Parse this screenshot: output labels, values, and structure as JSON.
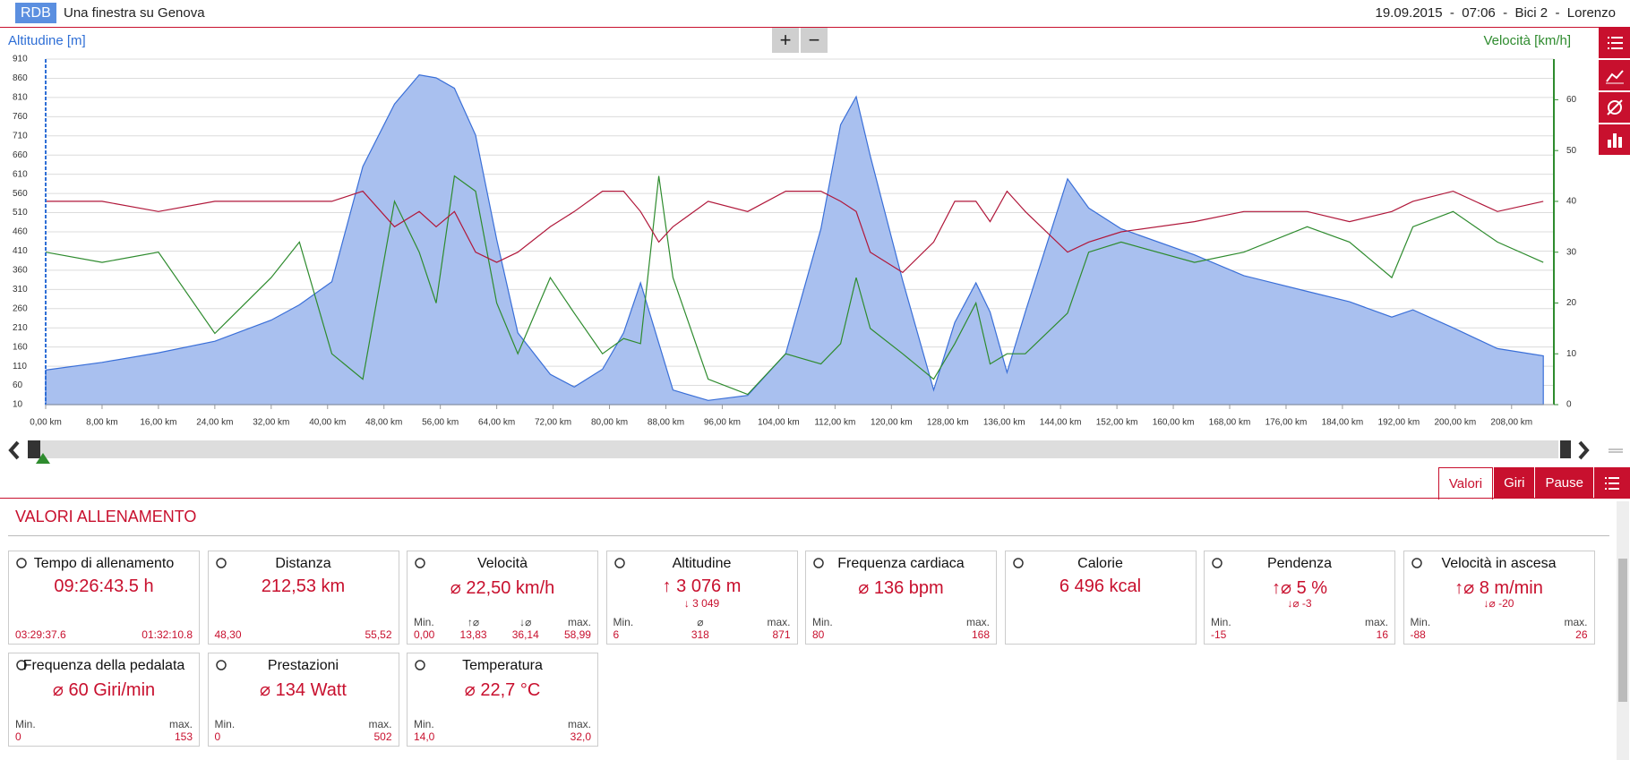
{
  "header": {
    "logo": "RDB",
    "title": "Una finestra su Genova",
    "info": "19.09.2015  -  07:06  -  Bici 2  -  Lorenzo"
  },
  "zoom": [
    "+",
    "−"
  ],
  "chart_data": {
    "type": "line",
    "ylabel": "Altitudine [m]",
    "y2label": "Velocità [km/h]",
    "x": [
      0,
      8,
      16,
      24,
      32,
      36,
      40.6,
      45,
      49.5,
      53,
      55.4,
      58,
      61,
      64,
      67,
      71.6,
      75,
      79,
      82,
      84.4,
      87,
      89,
      94,
      99.6,
      105,
      110,
      112.8,
      115,
      117,
      121.6,
      126,
      129,
      132,
      134,
      136.4,
      139,
      145,
      148,
      152.6,
      163,
      170,
      179,
      185,
      191,
      194,
      199.7,
      206,
      212.5
    ],
    "xlim": [
      0,
      214
    ],
    "ylim": [
      10,
      910
    ],
    "y2lim": [
      0,
      68
    ],
    "grid": true,
    "yticks": [
      10,
      60,
      110,
      160,
      210,
      260,
      310,
      360,
      410,
      460,
      510,
      560,
      610,
      660,
      710,
      760,
      810,
      860,
      910
    ],
    "y2ticks": [
      0,
      10,
      20,
      30,
      40,
      50,
      60
    ],
    "xticks": [
      {
        "value": 0,
        "label": "0,00 km"
      },
      {
        "value": 8,
        "label": "8,00 km"
      },
      {
        "value": 16,
        "label": "16,00 km"
      },
      {
        "value": 24,
        "label": "24,00 km"
      },
      {
        "value": 32,
        "label": "32,00 km"
      },
      {
        "value": 40,
        "label": "40,00 km"
      },
      {
        "value": 48,
        "label": "48,00 km"
      },
      {
        "value": 56,
        "label": "56,00 km"
      },
      {
        "value": 64,
        "label": "64,00 km"
      },
      {
        "value": 72,
        "label": "72,00 km"
      },
      {
        "value": 80,
        "label": "80,00 km"
      },
      {
        "value": 88,
        "label": "88,00 km"
      },
      {
        "value": 96,
        "label": "96,00 km"
      },
      {
        "value": 104,
        "label": "104,00 km"
      },
      {
        "value": 112,
        "label": "112,00 km"
      },
      {
        "value": 120,
        "label": "120,00 km"
      },
      {
        "value": 128,
        "label": "128,00 km"
      },
      {
        "value": 136,
        "label": "136,00 km"
      },
      {
        "value": 144,
        "label": "144,00 km"
      },
      {
        "value": 152,
        "label": "152,00 km"
      },
      {
        "value": 160,
        "label": "160,00 km"
      },
      {
        "value": 168,
        "label": "168,00 km"
      },
      {
        "value": 176,
        "label": "176,00 km"
      },
      {
        "value": 184,
        "label": "184,00 km"
      },
      {
        "value": 192,
        "label": "192,00 km"
      },
      {
        "value": 200,
        "label": "200,00 km"
      },
      {
        "value": 208,
        "label": "208,00 km"
      }
    ],
    "series": [
      {
        "color": "#3a6fd8",
        "fill": "#a9c0ef",
        "values": [
          100,
          120,
          145,
          175,
          230,
          270,
          330,
          630,
          793,
          869,
          861,
          834,
          712,
          440,
          197,
          89,
          56,
          102,
          197,
          327,
          170,
          48,
          21,
          34,
          143,
          468,
          739,
          812,
          658,
          333,
          48,
          224,
          327,
          251,
          94,
          251,
          598,
          522,
          468,
          400,
          346,
          305,
          278,
          238,
          257,
          210,
          156,
          137
        ]
      },
      {
        "color": "#2e8b2e",
        "axis": "y2",
        "values": [
          30,
          28,
          30,
          14,
          25,
          32,
          10,
          5,
          40,
          30,
          20,
          45,
          42,
          20,
          10,
          25,
          18,
          10,
          13,
          12,
          45,
          25,
          5,
          2,
          10,
          8,
          12,
          25,
          15,
          10,
          5,
          12,
          20,
          8,
          10,
          10,
          18,
          30,
          32,
          28,
          30,
          35,
          32,
          25,
          35,
          38,
          32,
          28
        ]
      },
      {
        "color": "#b0173a",
        "axis": "y2",
        "values": [
          40,
          40,
          38,
          40,
          40,
          40,
          40,
          42,
          35,
          38,
          35,
          38,
          30,
          28,
          30,
          35,
          38,
          42,
          42,
          38,
          32,
          35,
          40,
          38,
          42,
          42,
          40,
          38,
          30,
          26,
          32,
          40,
          40,
          36,
          42,
          38,
          30,
          32,
          34,
          36,
          38,
          38,
          36,
          38,
          40,
          42,
          38,
          40
        ]
      }
    ]
  },
  "tabs": [
    "Valori",
    "Giri",
    "Pause"
  ],
  "section_title": "VALORI ALLENAMENTO",
  "cards": [
    {
      "title": "Tempo di allenamento",
      "main": "09:26:43.5 h",
      "footer": [
        {
          "value": "03:29:37.6"
        },
        {
          "value": "01:32:10.8"
        }
      ]
    },
    {
      "title": "Distanza",
      "main": "212,53 km",
      "footer": [
        {
          "value": "48,30"
        },
        {
          "value": "55,52"
        }
      ]
    },
    {
      "title": "Velocità",
      "main": "⌀ 22,50 km/h",
      "footer": [
        {
          "label": "Min.",
          "value": "0,00"
        },
        {
          "label": "↑⌀",
          "value": "13,83"
        },
        {
          "label": "↓⌀",
          "value": "36,14"
        },
        {
          "label": "max.",
          "value": "58,99"
        }
      ]
    },
    {
      "title": "Altitudine",
      "main": "↑ 3 076 m",
      "sub": "↓ 3 049",
      "footer": [
        {
          "label": "Min.",
          "value": "6"
        },
        {
          "label": "⌀",
          "value": "318"
        },
        {
          "label": "max.",
          "value": "871"
        }
      ]
    },
    {
      "title": "Frequenza cardiaca",
      "main": "⌀ 136 bpm",
      "footer": [
        {
          "label": "Min.",
          "value": "80"
        },
        {
          "label": "max.",
          "value": "168"
        }
      ]
    },
    {
      "title": "Calorie",
      "main": "6 496 kcal",
      "footer": []
    },
    {
      "title": "Pendenza",
      "main": "↑⌀ 5 %",
      "sub": "↓⌀  -3",
      "footer": [
        {
          "label": "Min.",
          "value": "-15"
        },
        {
          "label": "max.",
          "value": "16"
        }
      ]
    },
    {
      "title": "Velocità in ascesa",
      "main": "↑⌀ 8 m/min",
      "sub": "↓⌀  -20",
      "footer": [
        {
          "label": "Min.",
          "value": "-88"
        },
        {
          "label": "max.",
          "value": "26"
        }
      ]
    },
    {
      "title": "Frequenza della pedalata",
      "main": "⌀ 60 Giri/min",
      "footer": [
        {
          "label": "Min.",
          "value": "0"
        },
        {
          "label": "max.",
          "value": "153"
        }
      ]
    },
    {
      "title": "Prestazioni",
      "main": "⌀ 134 Watt",
      "footer": [
        {
          "label": "Min.",
          "value": "0"
        },
        {
          "label": "max.",
          "value": "502"
        }
      ]
    },
    {
      "title": "Temperatura",
      "main": "⌀ 22,7 °C",
      "footer": [
        {
          "label": "Min.",
          "value": "14,0"
        },
        {
          "label": "max.",
          "value": "32,0"
        }
      ]
    }
  ]
}
